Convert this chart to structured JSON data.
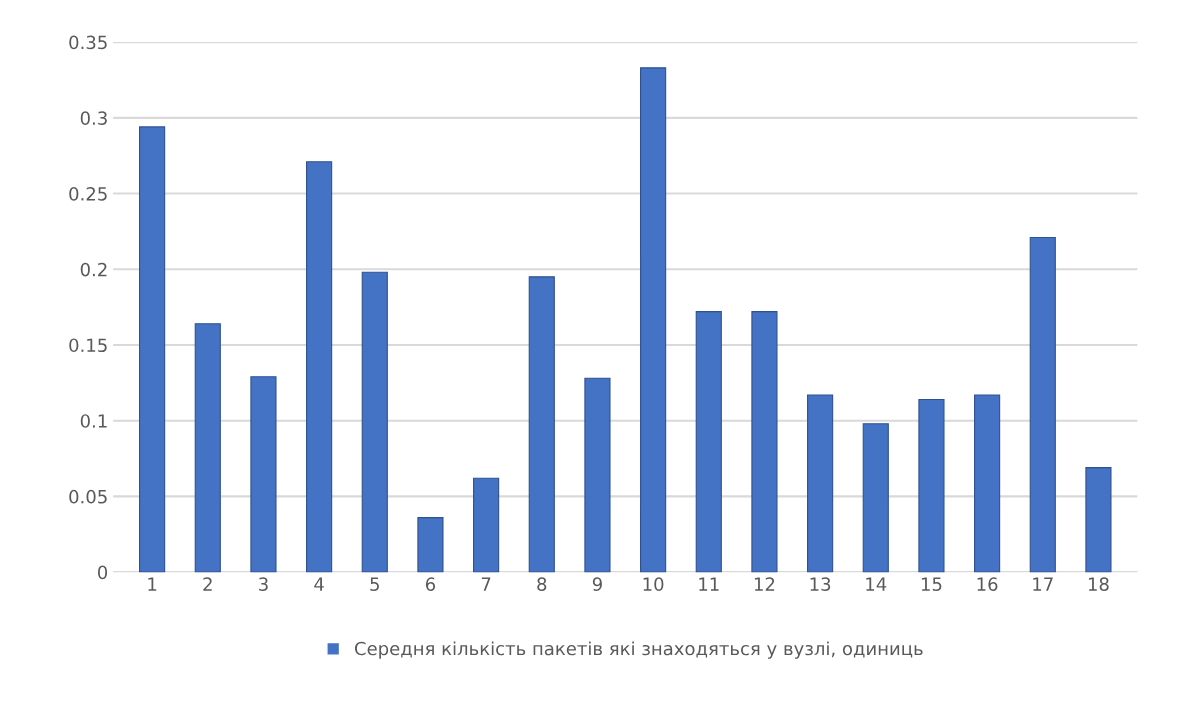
{
  "chart_data": {
    "type": "bar",
    "categories": [
      "1",
      "2",
      "3",
      "4",
      "5",
      "6",
      "7",
      "8",
      "9",
      "10",
      "11",
      "12",
      "13",
      "14",
      "15",
      "16",
      "17",
      "18"
    ],
    "series": [
      {
        "name": "Середня кількість пакетів які знаходяться у вузлі, одиниць",
        "color": "#4472c4",
        "values": [
          0.294,
          0.164,
          0.129,
          0.271,
          0.198,
          0.036,
          0.062,
          0.195,
          0.128,
          0.333,
          0.172,
          0.172,
          0.117,
          0.098,
          0.114,
          0.117,
          0.221,
          0.069
        ]
      }
    ],
    "ylim": [
      0,
      0.35
    ],
    "yticks": [
      0,
      0.05,
      0.1,
      0.15,
      0.2,
      0.25,
      0.3,
      0.35
    ],
    "grid": "y",
    "legend": "bottom"
  }
}
